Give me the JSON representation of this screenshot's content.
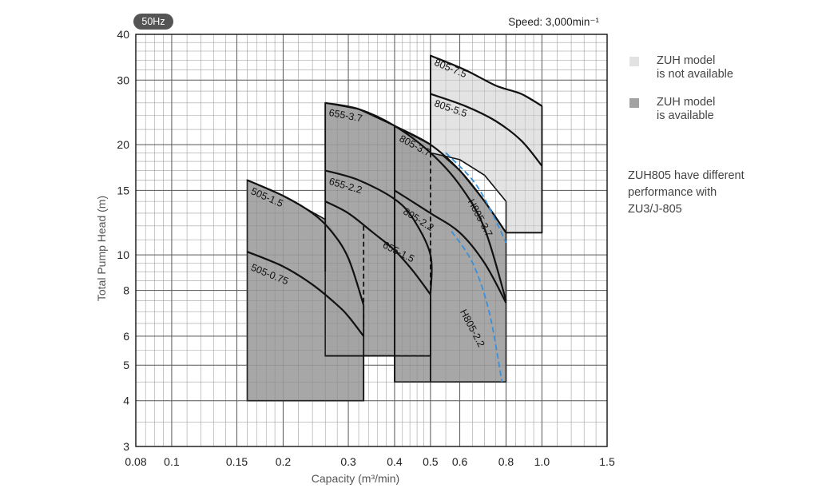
{
  "badge": "50Hz",
  "speed_label": "Speed: 3,000min⁻¹",
  "legend": [
    {
      "label": "ZUH model\nis not available",
      "color": "#e2e2e2"
    },
    {
      "label": "ZUH model\nis available",
      "color": "#a3a3a3"
    }
  ],
  "note": "ZUH805 have different\nperformance with\nZU3/J-805",
  "chart_data": {
    "type": "line",
    "title": "",
    "xlabel": "Capacity (m³/min)",
    "ylabel": "Total Pump Head (m)",
    "xscale": "log",
    "yscale": "log",
    "xlim": [
      0.08,
      1.5
    ],
    "ylim": [
      3,
      40
    ],
    "x_ticks": [
      0.08,
      0.1,
      0.15,
      0.2,
      0.3,
      0.4,
      0.5,
      0.6,
      0.8,
      1.0,
      1.5
    ],
    "x_tick_labels": [
      "0.08",
      "0.1",
      "0.15",
      "0.2",
      "0.3",
      "0.4",
      "0.5",
      "0.6",
      "0.8",
      "1.0",
      "1.5"
    ],
    "y_ticks": [
      3,
      4,
      5,
      6,
      8,
      10,
      15,
      20,
      30,
      40
    ],
    "y_tick_labels": [
      "3",
      "4",
      "5",
      "6",
      "8",
      "10",
      "15",
      "20",
      "30",
      "40"
    ],
    "grid": true,
    "regions": [
      {
        "id": "505",
        "fill": "#a3a3a3",
        "points": [
          [
            0.16,
            4.0
          ],
          [
            0.16,
            16.0
          ],
          [
            0.2,
            14.5
          ],
          [
            0.26,
            12.5
          ],
          [
            0.3,
            10.0
          ],
          [
            0.33,
            7.3
          ],
          [
            0.33,
            4.0
          ]
        ]
      },
      {
        "id": "655",
        "fill": "#a3a3a3",
        "points": [
          [
            0.26,
            5.3
          ],
          [
            0.26,
            26.0
          ],
          [
            0.32,
            25.0
          ],
          [
            0.4,
            22.5
          ],
          [
            0.5,
            18.0
          ],
          [
            0.5,
            5.3
          ]
        ]
      },
      {
        "id": "805-zuh",
        "fill": "#a3a3a3",
        "points": [
          [
            0.4,
            4.5
          ],
          [
            0.4,
            22.5
          ],
          [
            0.5,
            20.0
          ],
          [
            0.6,
            17.0
          ],
          [
            0.7,
            14.0
          ],
          [
            0.8,
            11.5
          ],
          [
            0.8,
            4.5
          ]
        ]
      },
      {
        "id": "805-no-zuh",
        "fill": "#e2e2e2",
        "points": [
          [
            0.5,
            19.0
          ],
          [
            0.5,
            35.0
          ],
          [
            0.62,
            32.0
          ],
          [
            0.75,
            29.0
          ],
          [
            0.88,
            27.5
          ],
          [
            1.0,
            25.5
          ],
          [
            1.0,
            11.5
          ],
          [
            0.8,
            11.5
          ],
          [
            0.8,
            14.0
          ],
          [
            0.7,
            16.5
          ],
          [
            0.6,
            18.2
          ]
        ]
      }
    ],
    "boundary_lines": [
      {
        "points": [
          [
            0.33,
            4.0
          ],
          [
            0.33,
            7.3
          ]
        ],
        "style": "solid"
      },
      {
        "points": [
          [
            0.26,
            9.0
          ],
          [
            0.26,
            26.0
          ]
        ],
        "style": "solid"
      },
      {
        "points": [
          [
            0.26,
            5.3
          ],
          [
            0.5,
            5.3
          ],
          [
            0.5,
            7.8
          ]
        ],
        "style": "solid"
      },
      {
        "points": [
          [
            0.4,
            4.5
          ],
          [
            0.4,
            22.5
          ]
        ],
        "style": "solid"
      },
      {
        "points": [
          [
            0.5,
            4.5
          ],
          [
            0.5,
            7.8
          ]
        ],
        "style": "solid"
      },
      {
        "points": [
          [
            0.5,
            19.0
          ],
          [
            0.5,
            35.0
          ]
        ],
        "style": "solid"
      },
      {
        "points": [
          [
            0.8,
            11.5
          ],
          [
            1.0,
            11.5
          ],
          [
            1.0,
            25.5
          ]
        ],
        "style": "solid"
      },
      {
        "points": [
          [
            0.33,
            12.0
          ],
          [
            0.33,
            6.2
          ]
        ],
        "style": "dashed"
      },
      {
        "points": [
          [
            0.33,
            5.3
          ],
          [
            0.5,
            5.3
          ]
        ],
        "style": "dashed"
      },
      {
        "points": [
          [
            0.5,
            19.0
          ],
          [
            0.5,
            7.8
          ]
        ],
        "style": "dashed"
      }
    ],
    "series": [
      {
        "name": "505-1.5",
        "label_at": [
          0.163,
          14.7
        ],
        "points": [
          [
            0.16,
            16.0
          ],
          [
            0.2,
            14.5
          ],
          [
            0.24,
            13.0
          ],
          [
            0.27,
            11.6
          ],
          [
            0.3,
            9.8
          ],
          [
            0.33,
            7.3
          ]
        ]
      },
      {
        "name": "505-0.75",
        "label_at": [
          0.163,
          9.1
        ],
        "points": [
          [
            0.16,
            10.2
          ],
          [
            0.2,
            9.3
          ],
          [
            0.24,
            8.3
          ],
          [
            0.28,
            7.3
          ],
          [
            0.3,
            6.8
          ],
          [
            0.33,
            6.0
          ]
        ]
      },
      {
        "name": "655-3.7",
        "label_at": [
          0.265,
          24.0
        ],
        "points": [
          [
            0.26,
            26.0
          ],
          [
            0.32,
            25.0
          ],
          [
            0.4,
            22.5
          ],
          [
            0.5,
            19.0
          ],
          [
            0.6,
            15.5
          ],
          [
            0.7,
            11.8
          ],
          [
            0.8,
            7.5
          ]
        ]
      },
      {
        "name": "655-2.2",
        "label_at": [
          0.265,
          15.6
        ],
        "points": [
          [
            0.26,
            17.0
          ],
          [
            0.32,
            16.0
          ],
          [
            0.4,
            14.2
          ],
          [
            0.45,
            12.5
          ],
          [
            0.5,
            10.0
          ],
          [
            0.5,
            7.8
          ]
        ]
      },
      {
        "name": "655-1.5",
        "label_at": [
          0.37,
          10.5
        ],
        "points": [
          [
            0.26,
            14.0
          ],
          [
            0.3,
            13.0
          ],
          [
            0.35,
            11.5
          ],
          [
            0.4,
            10.3
          ],
          [
            0.45,
            9.0
          ],
          [
            0.5,
            7.8
          ]
        ]
      },
      {
        "name": "805-3.7",
        "label_at": [
          0.41,
          20.5
        ],
        "points": [
          [
            0.4,
            22.5
          ],
          [
            0.5,
            20.0
          ],
          [
            0.6,
            17.0
          ],
          [
            0.7,
            14.0
          ],
          [
            0.8,
            11.5
          ]
        ]
      },
      {
        "name": "805-2.2",
        "label_at": [
          0.42,
          13.0
        ],
        "points": [
          [
            0.4,
            15.0
          ],
          [
            0.5,
            13.0
          ],
          [
            0.6,
            11.5
          ],
          [
            0.7,
            9.5
          ],
          [
            0.8,
            7.4
          ]
        ]
      },
      {
        "name": "805-7.5",
        "label_at": [
          0.51,
          33.0
        ],
        "points": [
          [
            0.5,
            35.0
          ],
          [
            0.62,
            32.0
          ],
          [
            0.75,
            29.0
          ],
          [
            0.88,
            27.5
          ],
          [
            1.0,
            25.5
          ]
        ]
      },
      {
        "name": "805-5.5",
        "label_at": [
          0.51,
          25.5
        ],
        "points": [
          [
            0.5,
            27.5
          ],
          [
            0.62,
            25.5
          ],
          [
            0.75,
            23.2
          ],
          [
            0.88,
            20.5
          ],
          [
            1.0,
            17.5
          ]
        ]
      },
      {
        "name": "H805-3.7",
        "color": "#3a8fd8",
        "dashed": true,
        "label_at": [
          0.63,
          14.0
        ],
        "points": [
          [
            0.55,
            19.0
          ],
          [
            0.65,
            16.0
          ],
          [
            0.72,
            13.5
          ],
          [
            0.8,
            10.8
          ]
        ]
      },
      {
        "name": "H805-2.2",
        "color": "#3a8fd8",
        "dashed": true,
        "label_at": [
          0.6,
          7.0
        ],
        "points": [
          [
            0.57,
            11.6
          ],
          [
            0.65,
            9.5
          ],
          [
            0.72,
            7.0
          ],
          [
            0.78,
            4.5
          ]
        ]
      }
    ]
  }
}
